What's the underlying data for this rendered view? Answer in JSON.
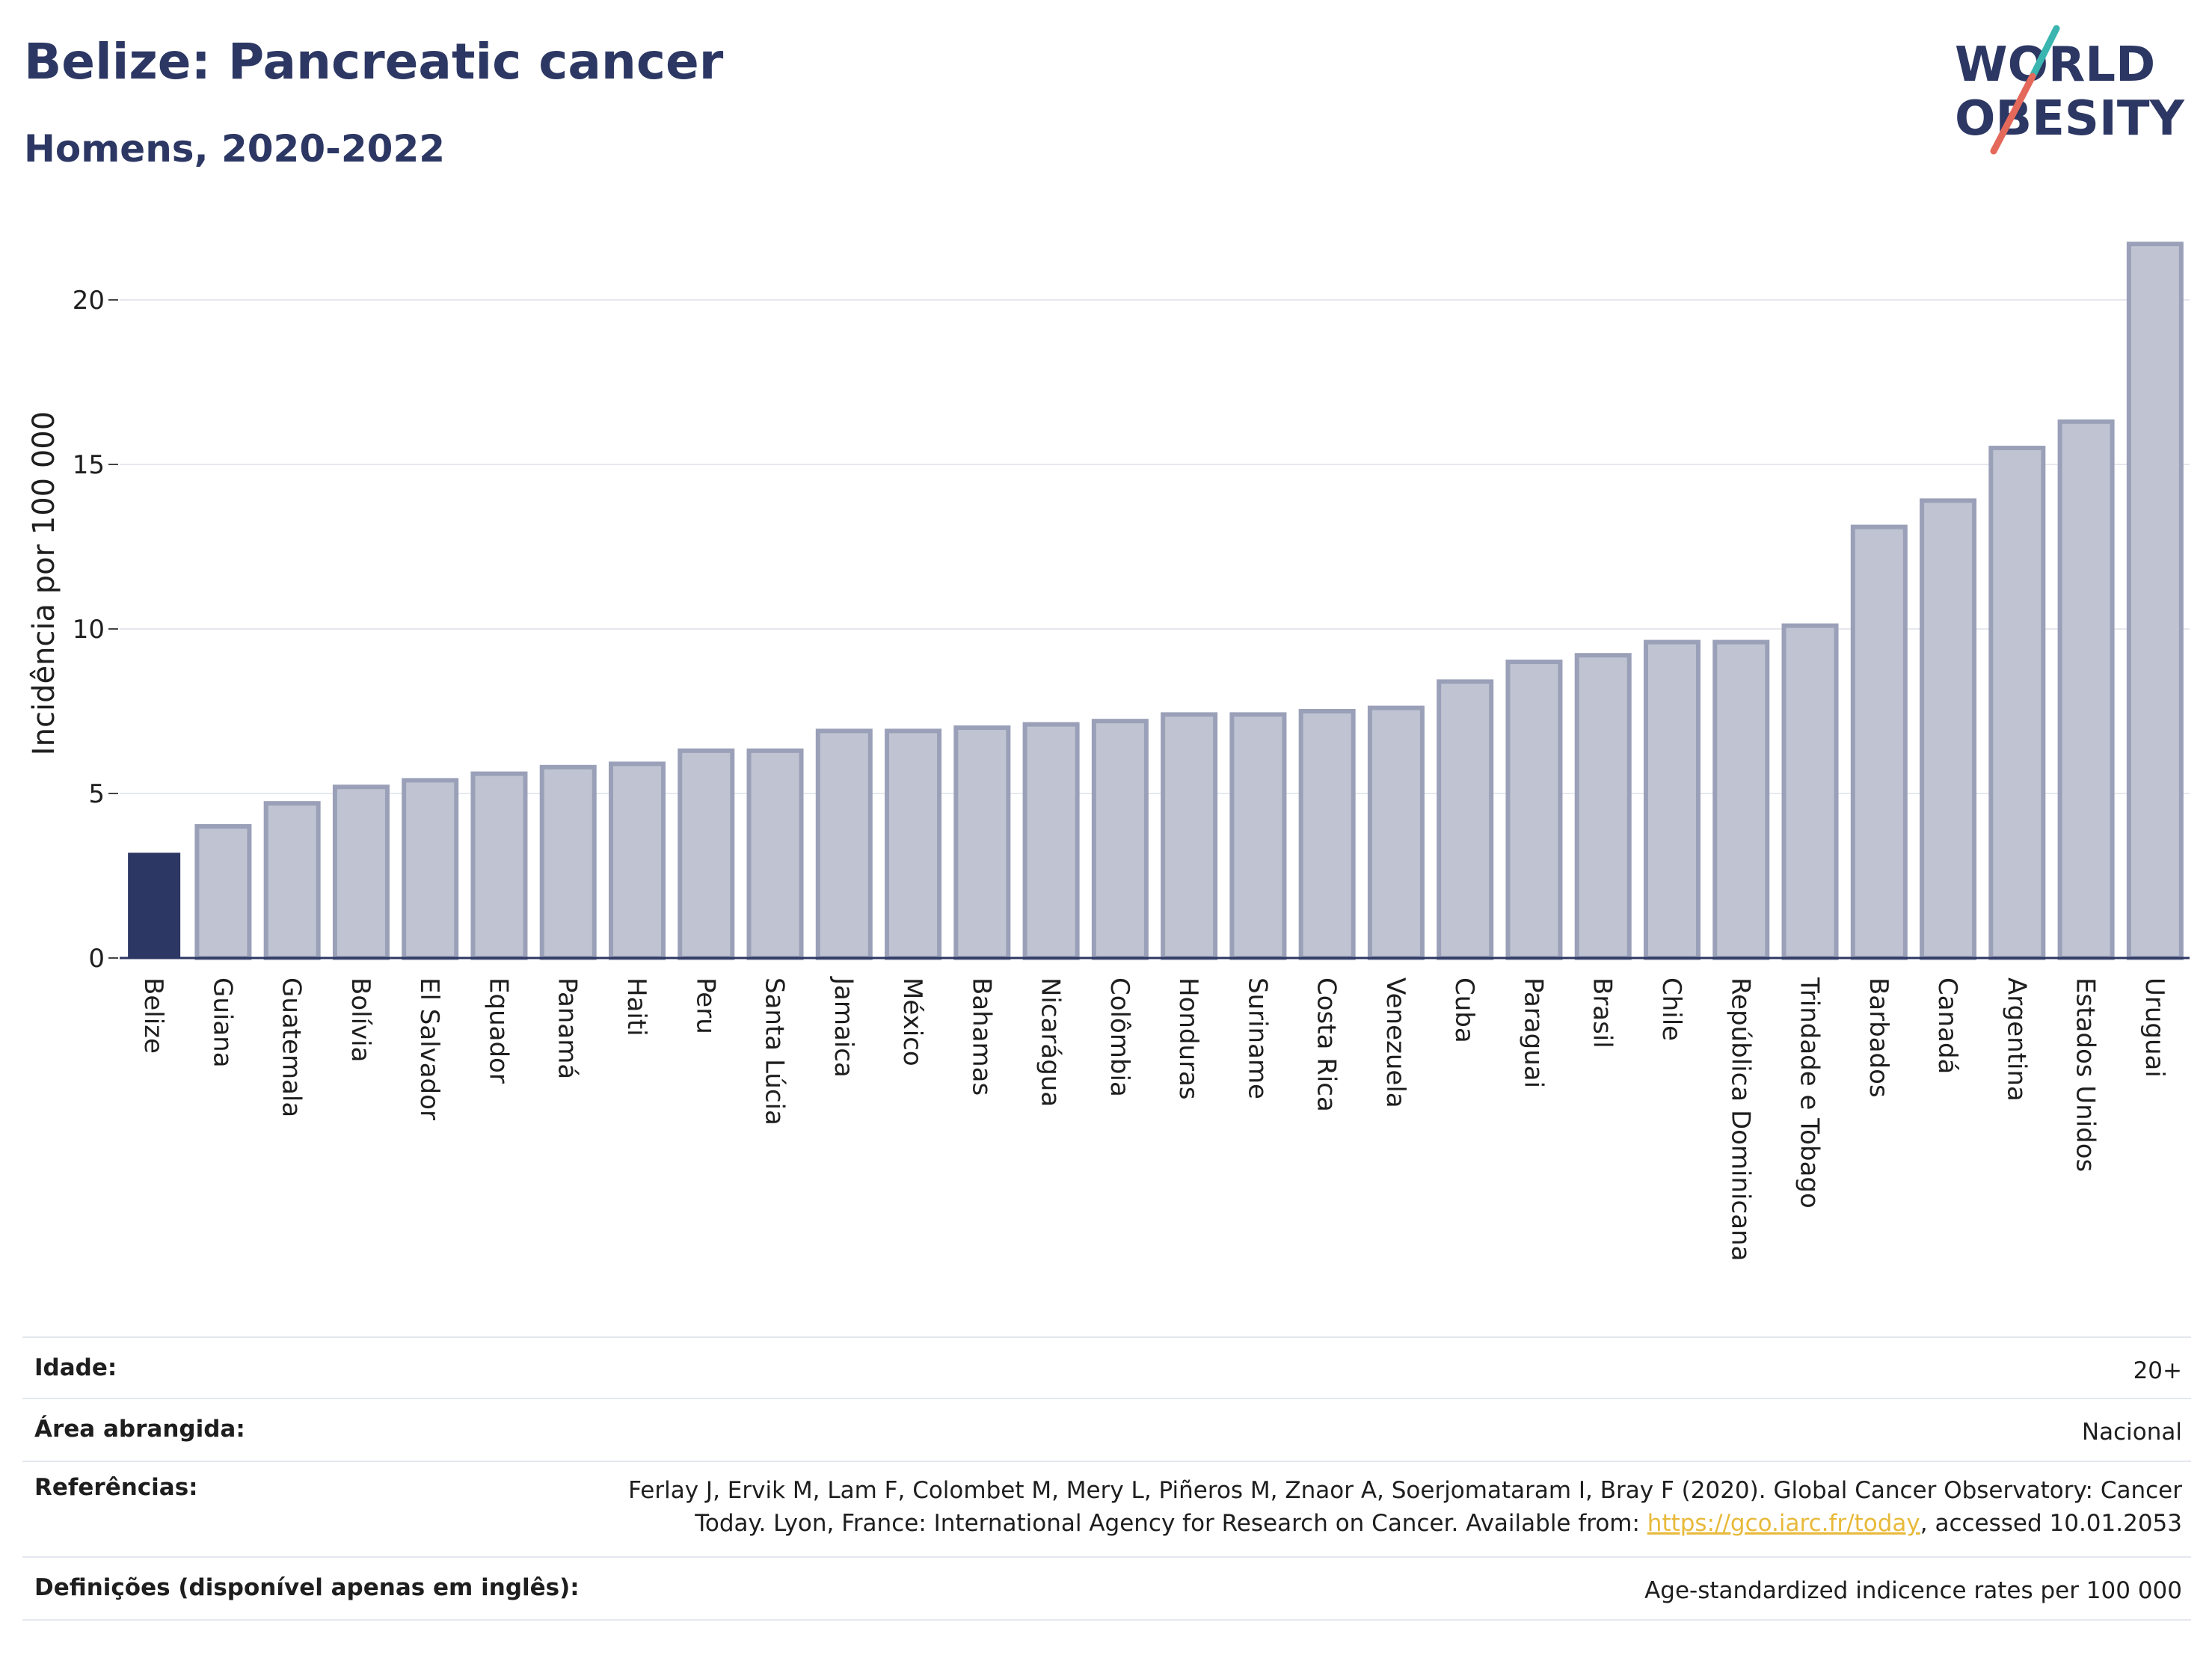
{
  "title": "Belize: Pancreatic cancer",
  "subtitle": "Homens, 2020-2022",
  "logo": {
    "line1": "WORLD",
    "line2": "OBESITY"
  },
  "colors": {
    "highlight": "#2c3763",
    "bar": "#c0c4d2",
    "bar_border": "#9aa0b8",
    "text": "#2c3763",
    "link": "#e8b93a"
  },
  "chart_data": {
    "type": "bar",
    "ylabel": "Incidência por 100 000",
    "ylim": [
      0,
      22
    ],
    "yticks": [
      0,
      5,
      10,
      15,
      20
    ],
    "grid": true,
    "highlight": "Belize",
    "categories": [
      "Belize",
      "Guiana",
      "Guatemala",
      "Bolívia",
      "El Salvador",
      "Equador",
      "Panamá",
      "Haiti",
      "Peru",
      "Santa Lúcia",
      "Jamaica",
      "México",
      "Bahamas",
      "Nicarágua",
      "Colômbia",
      "Honduras",
      "Suriname",
      "Costa Rica",
      "Venezuela",
      "Cuba",
      "Paraguai",
      "Brasil",
      "Chile",
      "República Dominicana",
      "Trindade e Tobago",
      "Barbados",
      "Canadá",
      "Argentina",
      "Estados Unidos",
      "Uruguai"
    ],
    "values": [
      3.2,
      4.0,
      4.7,
      5.2,
      5.4,
      5.6,
      5.8,
      5.9,
      6.3,
      6.3,
      6.9,
      6.9,
      7.0,
      7.1,
      7.2,
      7.4,
      7.4,
      7.5,
      7.6,
      8.4,
      9.0,
      9.2,
      9.6,
      9.6,
      10.1,
      13.1,
      13.9,
      15.5,
      16.3,
      21.7
    ]
  },
  "meta": {
    "age_label": "Idade:",
    "age_value": "20+",
    "area_label": "Área abrangida:",
    "area_value": "Nacional",
    "ref_label": "Referências:",
    "ref_text_1": "Ferlay J, Ervik M, Lam F, Colombet M, Mery L, Piñeros M, Znaor A, Soerjomataram I, Bray F (2020). Global Cancer Observatory: Cancer",
    "ref_text_2": "Today. Lyon, France: International Agency for Research on Cancer. Available from: ",
    "ref_link": "https://gco.iarc.fr/today",
    "ref_text_3": ", accessed 10.01.2053",
    "def_label": "Definições (disponível apenas em inglês):",
    "def_value": "Age-standardized indicence rates per 100 000"
  }
}
